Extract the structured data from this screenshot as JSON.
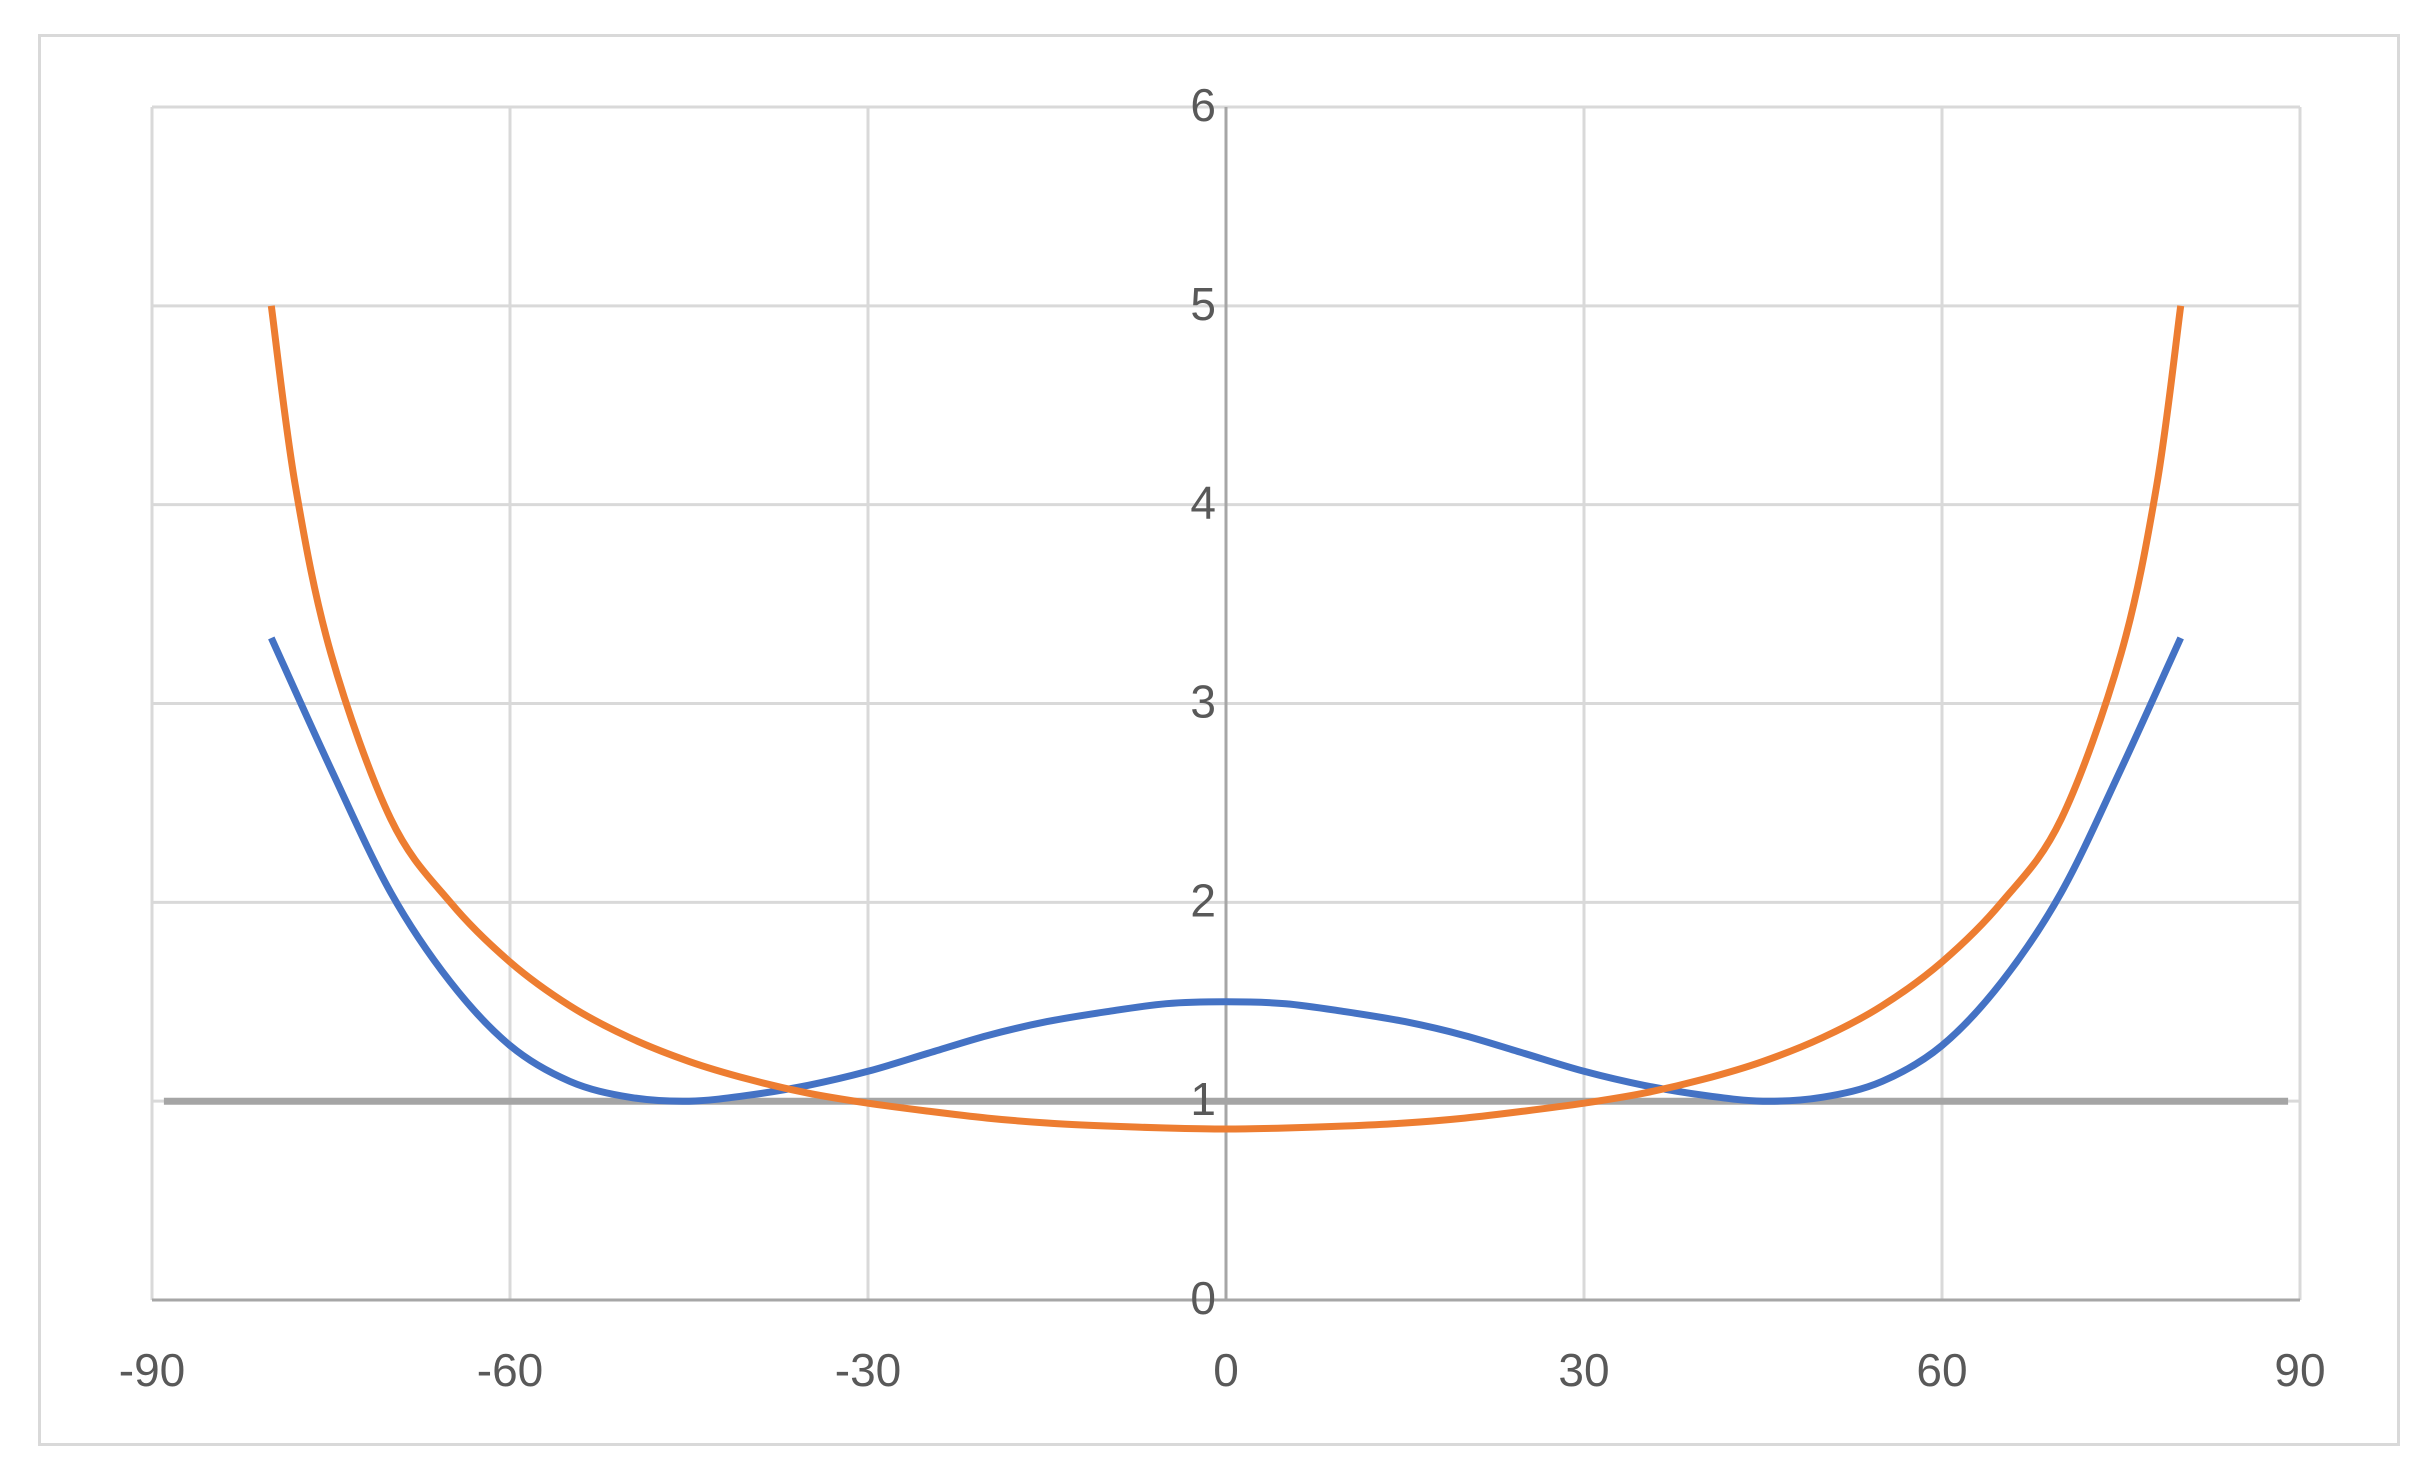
{
  "chart_data": {
    "type": "line",
    "title": "",
    "xlabel": "",
    "ylabel": "",
    "xlim": [
      -90,
      90
    ],
    "ylim": [
      0,
      6
    ],
    "x_ticks": [
      "-90",
      "-60",
      "-30",
      "0",
      "30",
      "60",
      "90"
    ],
    "y_ticks": [
      "0",
      "1",
      "2",
      "3",
      "4",
      "5",
      "6"
    ],
    "grid": true,
    "legend": "none",
    "colors": {
      "grid": "#d9d9d9",
      "axis": "#a6a6a6",
      "blue": "#4472c4",
      "orange": "#ed7d31",
      "gray": "#a5a5a5",
      "tick_text": "#595959"
    },
    "series": [
      {
        "color": "#4472c4",
        "x": [
          -80,
          -75,
          -70,
          -65,
          -60,
          -55,
          -50,
          -45,
          -40,
          -35,
          -30,
          -25,
          -20,
          -15,
          -10,
          -5,
          0,
          5,
          10,
          15,
          20,
          25,
          30,
          35,
          40,
          45,
          50,
          55,
          60,
          65,
          70,
          75,
          80
        ],
        "y": [
          3.33,
          2.67,
          2.05,
          1.6,
          1.28,
          1.1,
          1.02,
          1.0,
          1.03,
          1.08,
          1.15,
          1.24,
          1.33,
          1.4,
          1.45,
          1.49,
          1.5,
          1.49,
          1.45,
          1.4,
          1.33,
          1.24,
          1.15,
          1.08,
          1.03,
          1.0,
          1.02,
          1.1,
          1.28,
          1.6,
          2.05,
          2.67,
          3.33
        ]
      },
      {
        "color": "#ed7d31",
        "x": [
          -80,
          -78,
          -75,
          -70,
          -65,
          -60,
          -55,
          -50,
          -45,
          -40,
          -35,
          -30,
          -25,
          -20,
          -15,
          -10,
          -5,
          0,
          5,
          10,
          15,
          20,
          25,
          30,
          35,
          40,
          45,
          50,
          55,
          60,
          65,
          70,
          75,
          78,
          80
        ],
        "y": [
          5.0,
          4.1,
          3.25,
          2.42,
          2.0,
          1.7,
          1.48,
          1.32,
          1.2,
          1.11,
          1.04,
          0.99,
          0.95,
          0.915,
          0.89,
          0.875,
          0.865,
          0.86,
          0.865,
          0.875,
          0.89,
          0.915,
          0.95,
          0.99,
          1.04,
          1.11,
          1.2,
          1.32,
          1.48,
          1.7,
          2.0,
          2.42,
          3.25,
          4.1,
          5.0
        ]
      },
      {
        "color": "#a5a5a5",
        "x": [
          -89,
          89
        ],
        "y": [
          1.0,
          1.0
        ]
      }
    ]
  }
}
